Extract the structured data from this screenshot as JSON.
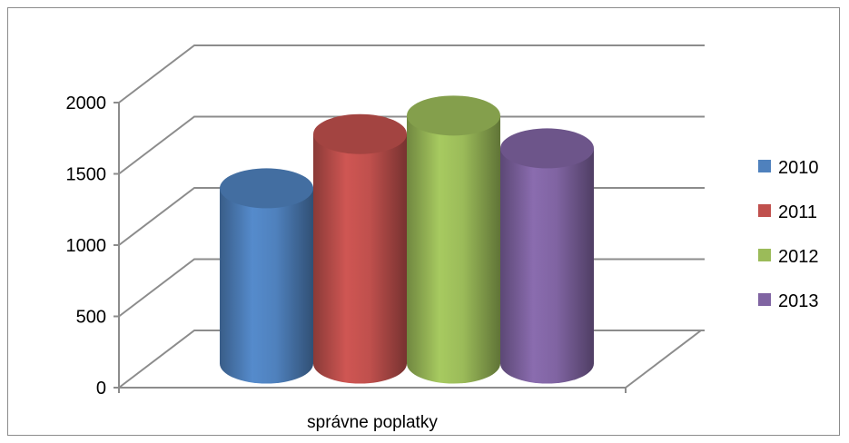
{
  "chart_data": {
    "type": "bar",
    "style": "3d-cylinder",
    "title": "",
    "xlabel": "",
    "ylabel": "",
    "categories": [
      "správne poplatky"
    ],
    "series": [
      {
        "name": "2010",
        "values": [
          1230
        ],
        "color": "#4f81bd"
      },
      {
        "name": "2011",
        "values": [
          1610
        ],
        "color": "#c0504d"
      },
      {
        "name": "2012",
        "values": [
          1740
        ],
        "color": "#9bbb59"
      },
      {
        "name": "2013",
        "values": [
          1510
        ],
        "color": "#8064a2"
      }
    ],
    "ylim": [
      0,
      2000
    ],
    "yticks": [
      "0",
      "500",
      "1000",
      "1500",
      "2000"
    ],
    "grid": true,
    "legend_position": "right"
  }
}
